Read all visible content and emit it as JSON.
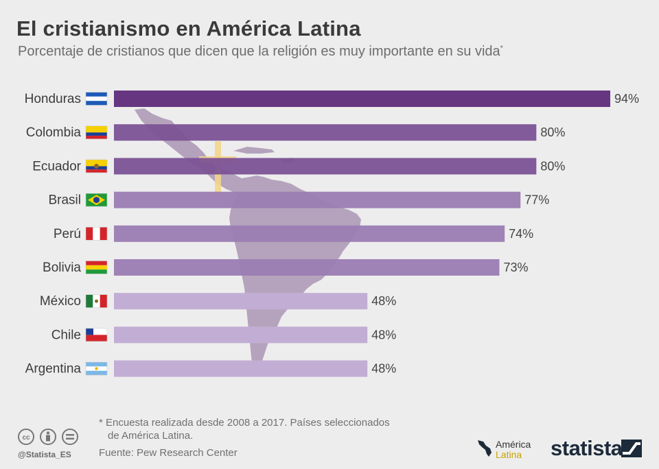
{
  "header": {
    "title": "El cristianismo en América Latina",
    "subtitle": "Porcentaje de cristianos que dicen que la religión es muy importante en su vida",
    "subtitle_mark": "*"
  },
  "chart_data": {
    "type": "bar",
    "orientation": "horizontal",
    "categories": [
      "Honduras",
      "Colombia",
      "Ecuador",
      "Brasil",
      "Perú",
      "Bolivia",
      "México",
      "Chile",
      "Argentina"
    ],
    "values": [
      94,
      80,
      80,
      77,
      74,
      73,
      48,
      48,
      48
    ],
    "value_labels": [
      "94%",
      "80%",
      "80%",
      "77%",
      "74%",
      "73%",
      "48%",
      "48%",
      "48%"
    ],
    "xlim": [
      0,
      94
    ],
    "grid": false,
    "colors": [
      "#5d2a7a",
      "#7b5295",
      "#7b5295",
      "#9a7cb2",
      "#9a7cb2",
      "#9a7cb2",
      "#c2aed4",
      "#c2aed4",
      "#c2aed4"
    ]
  },
  "footer": {
    "footnote_line1": "* Encuesta realizada desde 2008 a 2017. Países seleccionados",
    "footnote_line2": "de América Latina.",
    "source": "Fuente: Pew Research Center",
    "handle": "@Statista_ES",
    "partner_line1": "América",
    "partner_line2": "Latina",
    "brand": "statista"
  },
  "icons": {
    "license": [
      "cc-icon",
      "attribution-icon",
      "no-derivatives-icon"
    ],
    "map": "latin-america-map-icon",
    "cross": "cross-icon"
  }
}
